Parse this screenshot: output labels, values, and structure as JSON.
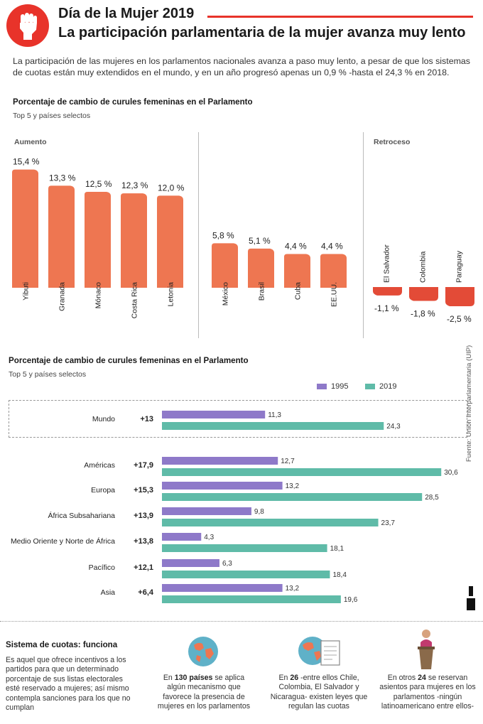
{
  "header": {
    "title": "Día de la Mujer 2019",
    "subtitle": "La participación parlamentaria de la mujer avanza muy lento",
    "intro": "La participación de las mujeres en los parlamentos nacionales avanza a paso muy lento, a pesar de que los sistemas de cuotas están muy extendidos en el mundo, y en un año progresó apenas un 0,9 % -hasta el 24,3 % en 2018."
  },
  "colors": {
    "accent": "#e8332a",
    "bar_orange": "#ee7651",
    "bar_red": "#e34b37",
    "series_1995": "#8e79c9",
    "series_2019": "#5fbba8"
  },
  "chart_top": {
    "title": "Porcentaje de cambio de curules femeninas en el Parlamento",
    "subtitle": "Top 5 y países selectos",
    "panel_increase": "Aumento",
    "panel_decrease": "Retroceso"
  },
  "chart_bottom": {
    "title": "Porcentaje de cambio de curules femeninas en el Parlamento",
    "subtitle": "Top 5 y países selectos",
    "legend_1995": "1995",
    "legend_2019": "2019"
  },
  "source": "Fuente: Unión Interparlamentaria (UIP)",
  "quotas": {
    "title": "Sistema de cuotas: funciona",
    "text": "Es aquel que ofrece incentivos a los partidos para que un determinado porcentaje de sus listas electorales esté reservado a mujeres; así mismo contempla sanciones para los que no cumplan",
    "facts": [
      {
        "pre": "En ",
        "strong": "130 países",
        "post": " se aplica algún mecanismo que favorece la presencia de mujeres en los parlamentos",
        "icon": "globe-icon"
      },
      {
        "pre": "En ",
        "strong": "26",
        "post": " -entre ellos Chile, Colombia, El Salvador y Nicaragua- existen leyes que regulan las cuotas",
        "icon": "globe-document-icon"
      },
      {
        "pre": "En otros ",
        "strong": "24",
        "post": " se reservan asientos para mujeres en los parlamentos -ningún latinoamericano entre ellos-",
        "icon": "woman-at-podium-icon"
      }
    ]
  },
  "chart_data": [
    {
      "type": "bar",
      "title": "Porcentaje de cambio de curules femeninas en el Parlamento",
      "subtitle": "Top 5 y países selectos",
      "unit": "%",
      "groups": [
        {
          "name": "Aumento",
          "categories": [
            "Yibuti",
            "Granada",
            "Mónaco",
            "Costa Rica",
            "Letonia"
          ],
          "values": [
            15.4,
            13.3,
            12.5,
            12.3,
            12.0
          ],
          "labels": [
            "15,4 %",
            "13,3 %",
            "12,5 %",
            "12,3 %",
            "12,0 %"
          ]
        },
        {
          "name": "",
          "categories": [
            "México",
            "Brasil",
            "Cuba",
            "EE.UU."
          ],
          "values": [
            5.8,
            5.1,
            4.4,
            4.4
          ],
          "labels": [
            "5,8 %",
            "5,1 %",
            "4,4 %",
            "4,4 %"
          ]
        },
        {
          "name": "Retroceso",
          "categories": [
            "El Salvador",
            "Colombia",
            "Paraguay"
          ],
          "values": [
            -1.1,
            -1.8,
            -2.5
          ],
          "labels": [
            "-1,1 %",
            "-1,8 %",
            "-2,5 %"
          ]
        }
      ]
    },
    {
      "type": "bar",
      "orientation": "horizontal",
      "title": "Porcentaje de cambio de curules femeninas en el Parlamento",
      "subtitle": "Top 5 y países selectos",
      "categories": [
        "Mundo",
        "Américas",
        "Europa",
        "África Subsahariana",
        "Medio Oriente y Norte de África",
        "Pacífico",
        "Asia"
      ],
      "change_labels": [
        "+13",
        "+17,9",
        "+15,3",
        "+13,9",
        "+13,8",
        "+12,1",
        "+6,4"
      ],
      "series": [
        {
          "name": "1995",
          "values": [
            11.3,
            12.7,
            13.2,
            9.8,
            4.3,
            6.3,
            13.2
          ],
          "labels": [
            "11,3",
            "12,7",
            "13,2",
            "9,8",
            "4,3",
            "6,3",
            "13,2"
          ]
        },
        {
          "name": "2019",
          "values": [
            24.3,
            30.6,
            28.5,
            23.7,
            18.1,
            18.4,
            19.6
          ],
          "labels": [
            "24,3",
            "30,6",
            "28,5",
            "23,7",
            "18,1",
            "18,4",
            "19,6"
          ]
        }
      ]
    }
  ]
}
